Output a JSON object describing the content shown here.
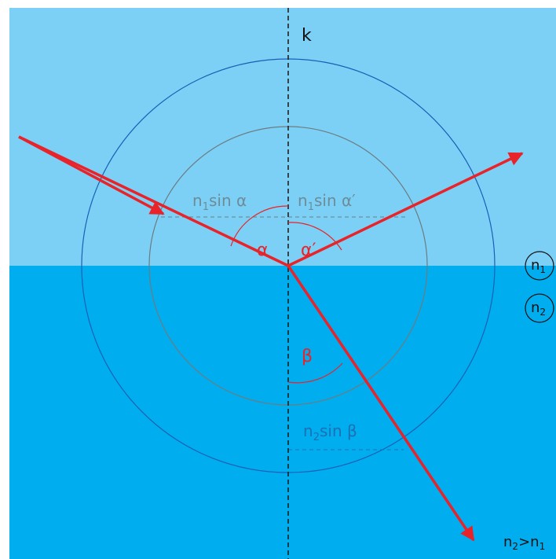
{
  "labels": {
    "normal": "k",
    "alpha": "α",
    "alpha_prime": "α′",
    "beta": "β",
    "medium1": {
      "n": "n",
      "sub": "1"
    },
    "medium2": {
      "n": "n",
      "sub": "2"
    },
    "formula_alpha": {
      "n": "n",
      "sub": "1",
      "rest": "sin α"
    },
    "formula_alpha_prime": {
      "n": "n",
      "sub": "1",
      "rest": "sin α′"
    },
    "formula_beta": {
      "n": "n",
      "sub": "2",
      "rest": "sin β"
    },
    "condition": {
      "a": "n",
      "a_sub": "2",
      "op": ">",
      "b": "n",
      "b_sub": "1"
    }
  },
  "colors": {
    "medium1": "#7dd0f5",
    "medium2": "#00adef",
    "ray": "#e8232a",
    "angle_arc": "#e8232a",
    "angle_text": "#e8232a",
    "normal_line": "#222222",
    "outer_circle": "#1a5fb4",
    "inner_circle": "#6b7c82",
    "formula_upper": "#6d8c99",
    "formula_lower": "#1f6fb5",
    "black_text": "#111111"
  }
}
